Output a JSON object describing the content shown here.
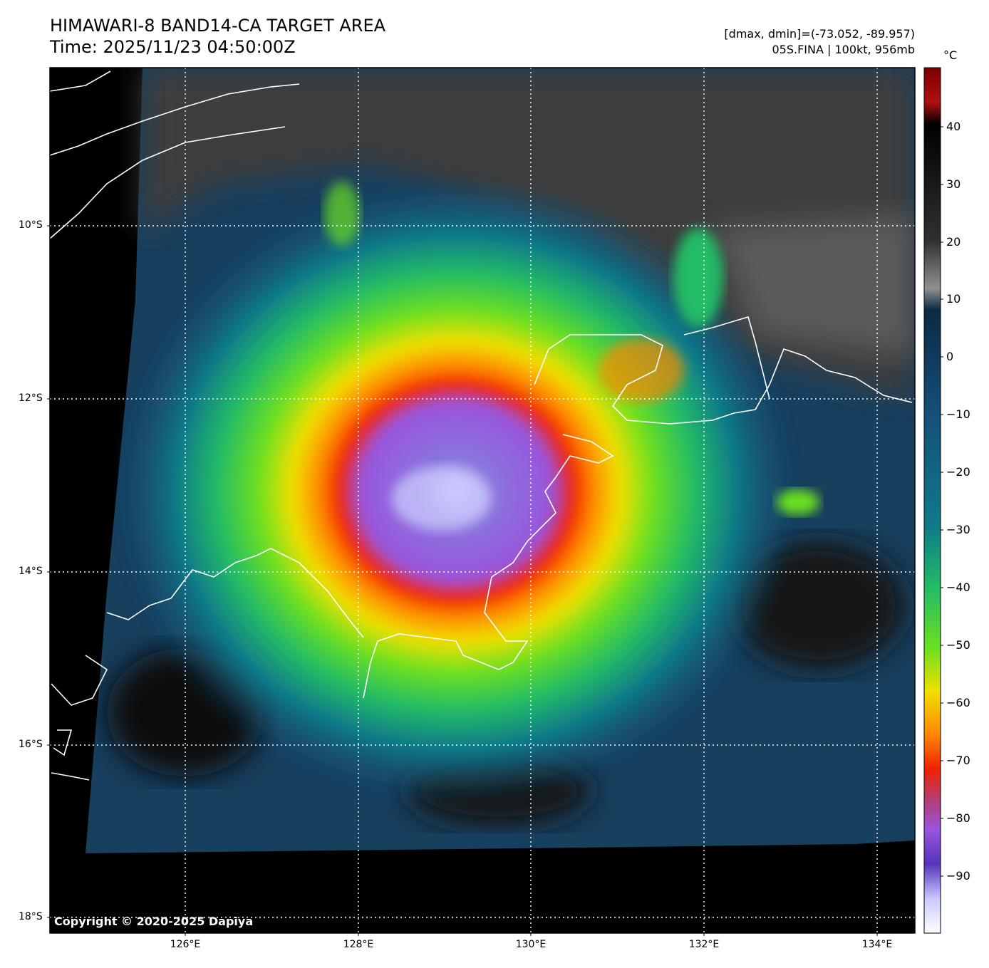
{
  "header": {
    "title_line1": "HIMAWARI-8 BAND14-CA TARGET AREA",
    "title_line2": "Time: 2025/11/23 04:50:00Z",
    "info_line1": "[dmax, dmin]=(-73.052, -89.957)",
    "info_line2": "05S.FINA | 100kt, 956mb"
  },
  "map": {
    "lat_labels": [
      "10°S",
      "12°S",
      "14°S",
      "16°S",
      "18°S"
    ],
    "lon_labels": [
      "126°E",
      "128°E",
      "130°E",
      "132°E",
      "134°E"
    ],
    "copyright": "Copyright © 2020-2025 Dapiya"
  },
  "colorbar": {
    "unit": "°C",
    "ticks": [
      "40",
      "30",
      "20",
      "10",
      "0",
      "−10",
      "−20",
      "−30",
      "−40",
      "−50",
      "−60",
      "−70",
      "−80",
      "−90"
    ],
    "stops": [
      {
        "value": 50,
        "color": "#7a0000"
      },
      {
        "value": 44,
        "color": "#b01010"
      },
      {
        "value": 40,
        "color": "#000000"
      },
      {
        "value": 20,
        "color": "#303030"
      },
      {
        "value": 12,
        "color": "#909090"
      },
      {
        "value": 8,
        "color": "#0a2a44"
      },
      {
        "value": -10,
        "color": "#154f7a"
      },
      {
        "value": -30,
        "color": "#0f7a8a"
      },
      {
        "value": -40,
        "color": "#22bb66"
      },
      {
        "value": -50,
        "color": "#6be020"
      },
      {
        "value": -58,
        "color": "#f0e000"
      },
      {
        "value": -66,
        "color": "#ff8800"
      },
      {
        "value": -72,
        "color": "#ee2200"
      },
      {
        "value": -78,
        "color": "#b04080"
      },
      {
        "value": -82,
        "color": "#9955dd"
      },
      {
        "value": -88,
        "color": "#5533bb"
      },
      {
        "value": -94,
        "color": "#c8c8ff"
      },
      {
        "value": -100,
        "color": "#ffffff"
      }
    ]
  }
}
